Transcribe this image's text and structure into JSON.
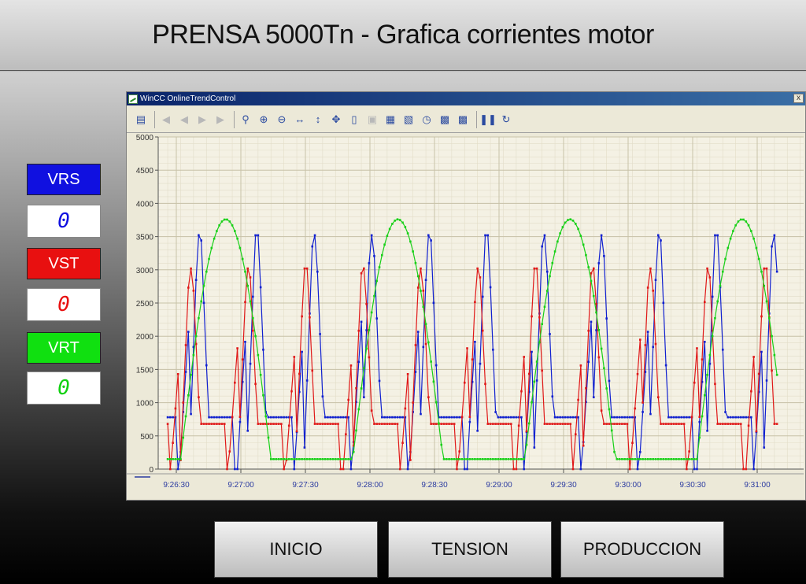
{
  "header": {
    "title": "PRENSA 5000Tn - Grafica corrientes motor"
  },
  "indicators": [
    {
      "label": "VRS",
      "value": "0",
      "color": "#1010e0"
    },
    {
      "label": "VST",
      "value": "0",
      "color": "#e81010"
    },
    {
      "label": "VRT",
      "value": "0",
      "color": "#10e010"
    }
  ],
  "trend_window": {
    "title": "WinCC OnlineTrendControl",
    "close_label": "x",
    "toolbar_icons": [
      "properties-icon",
      "first-record-icon",
      "previous-record-icon",
      "next-record-icon",
      "last-record-icon",
      "zoom-area-icon",
      "zoom-in-icon",
      "zoom-out-icon",
      "zoom-time-axis-icon",
      "zoom-value-axis-icon",
      "move-area-icon",
      "ruler-icon",
      "export-icon",
      "select-data-icon",
      "axes-icon",
      "time-range-icon",
      "previous-trend-icon",
      "next-trend-icon",
      "start-stop-icon",
      "original-view-icon"
    ]
  },
  "chart_data": {
    "type": "line",
    "ylim": [
      0,
      5000
    ],
    "yticks": [
      "0",
      "500",
      "1000",
      "1500",
      "2000",
      "2500",
      "3000",
      "3500",
      "4000",
      "4500",
      "5000"
    ],
    "xticks": [
      "9:26:30",
      "9:27:00",
      "9:27:30",
      "9:28:00",
      "9:28:30",
      "9:29:00",
      "9:29:30",
      "9:30:00",
      "9:30:30",
      "9:31:00"
    ],
    "series": [
      {
        "color": "#1020d0",
        "period_s": 26.7,
        "peak": 3520,
        "plateau": 780,
        "phase_s": 6
      },
      {
        "color": "#e01818",
        "period_s": 26.7,
        "peak": 3020,
        "plateau": 680,
        "phase_s": 2
      },
      {
        "color": "#18d018",
        "period_s": 80,
        "peak": 3760,
        "plateau": 150,
        "phase_s": 0
      }
    ]
  },
  "buttons": {
    "inicio": "INICIO",
    "tension": "TENSION",
    "produccion": "PRODUCCION"
  }
}
